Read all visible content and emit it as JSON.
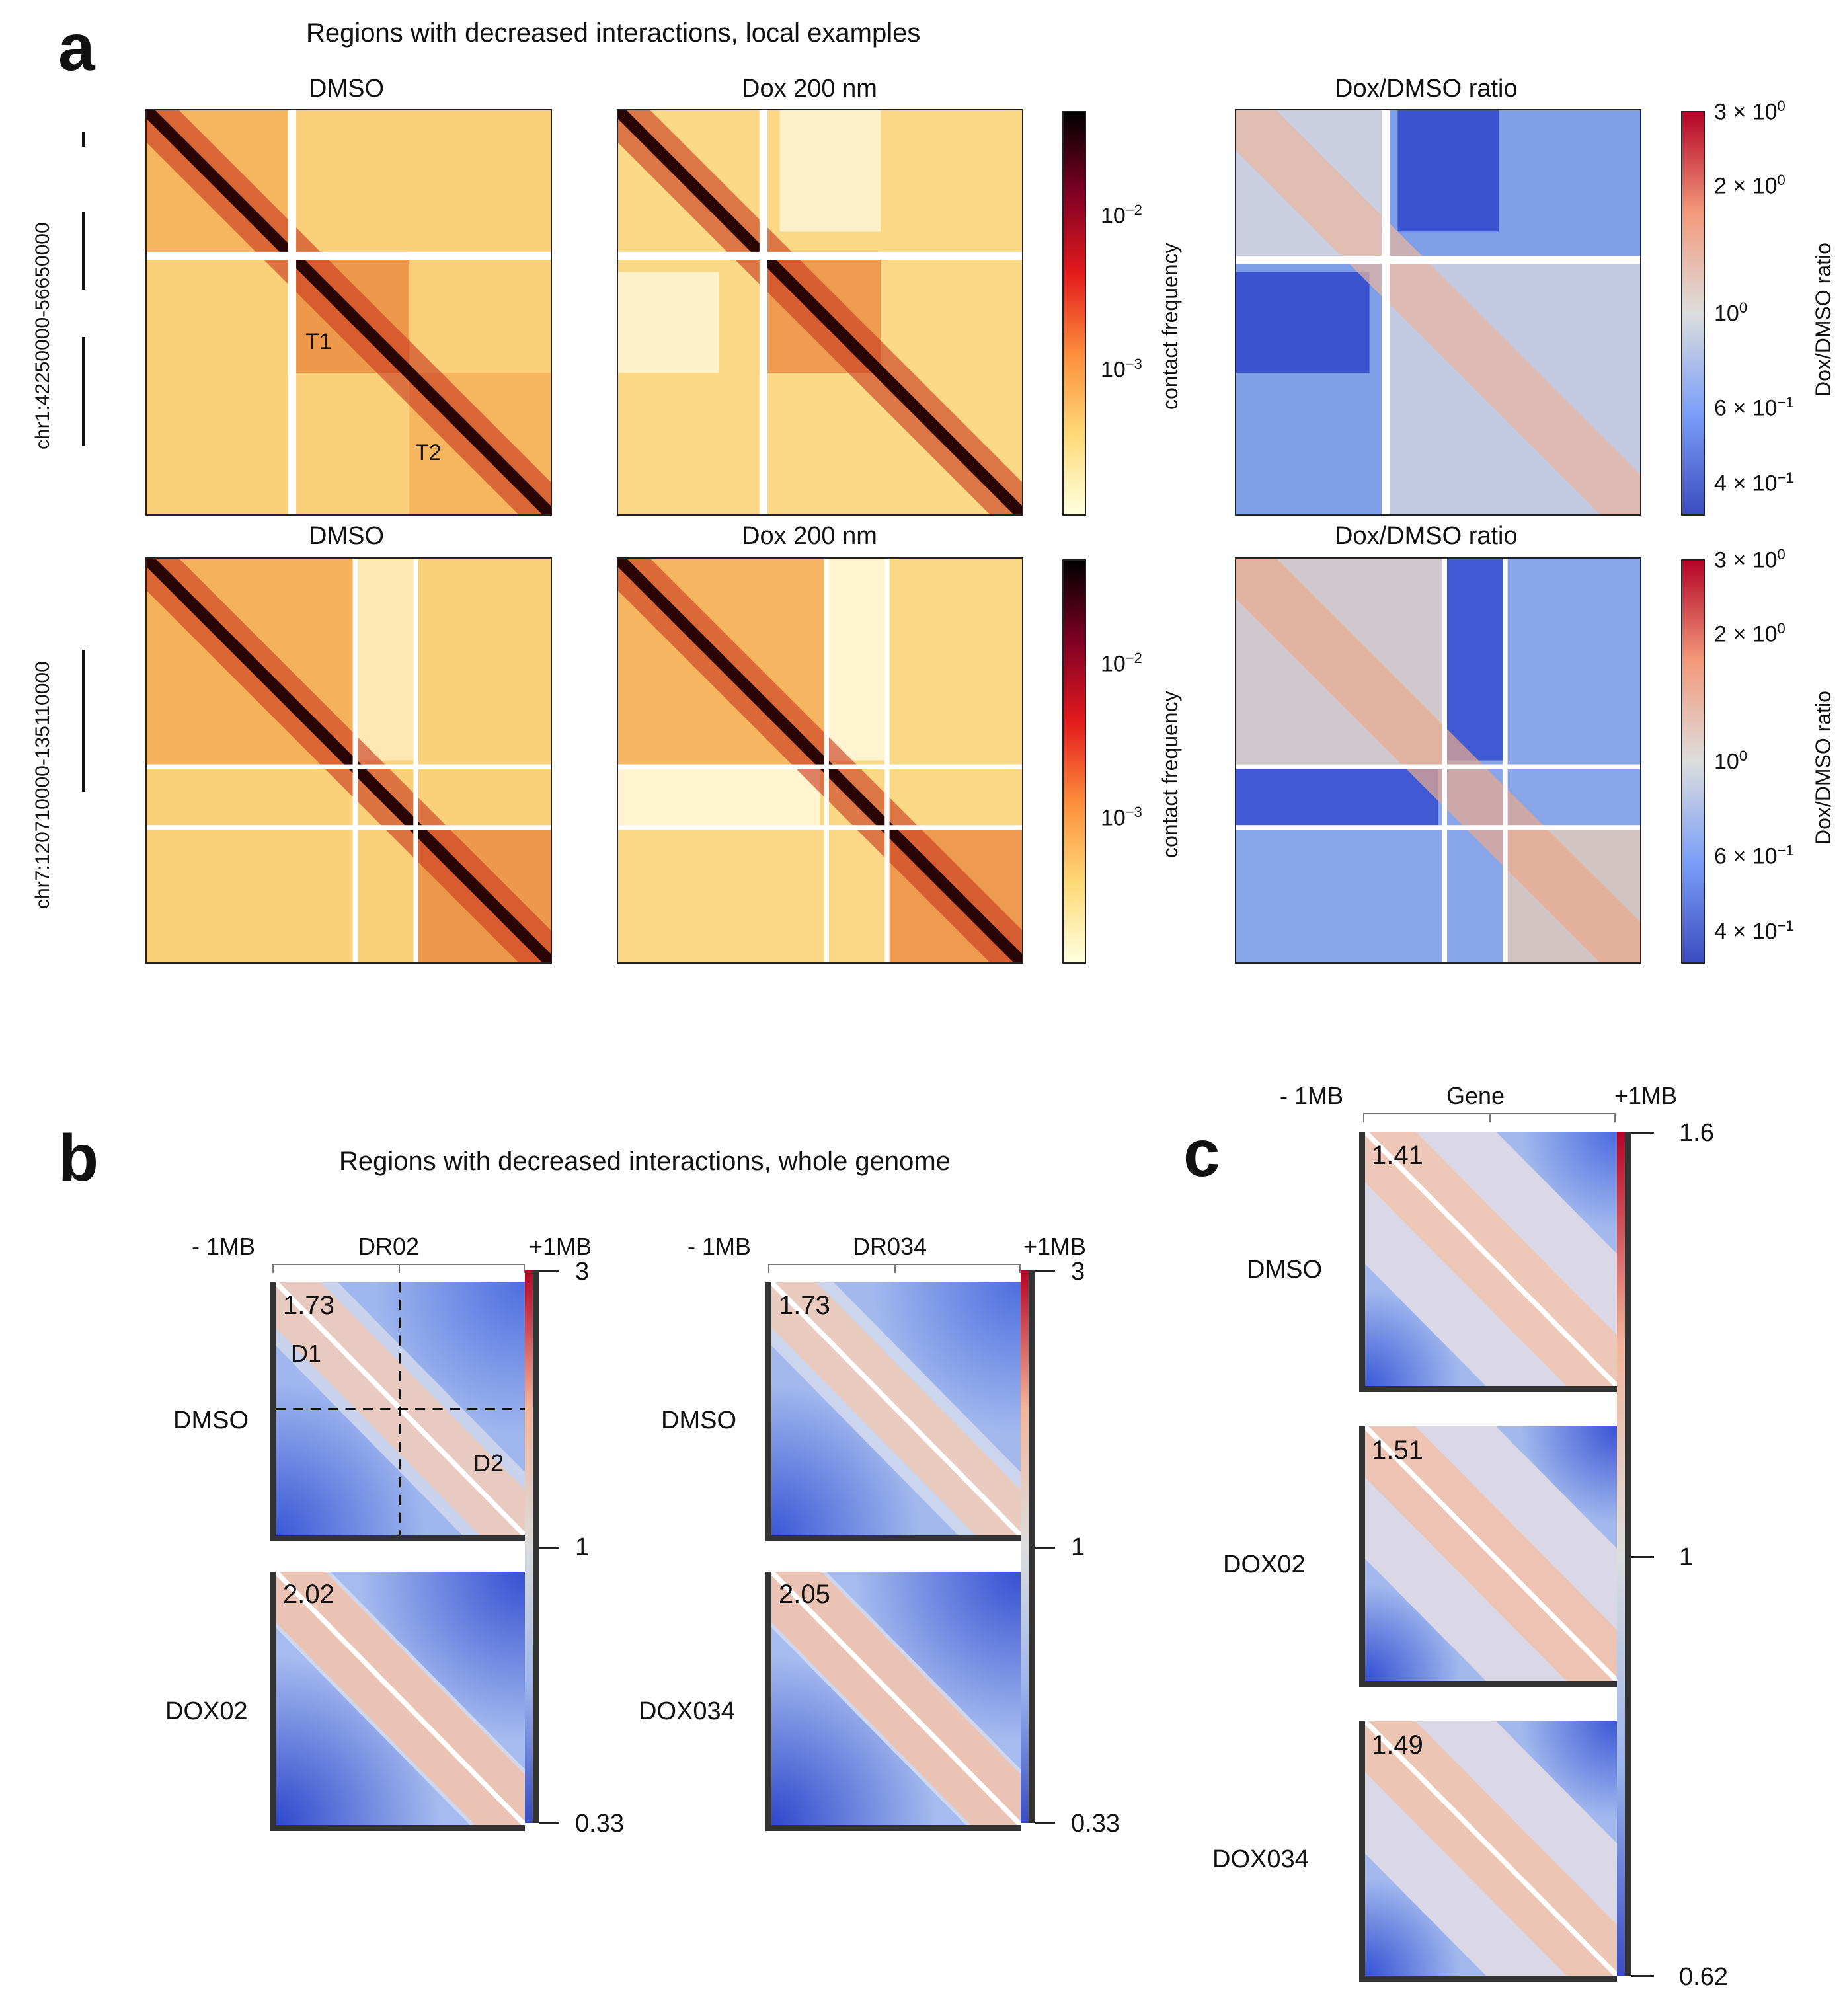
{
  "panel_a": {
    "letter": "a",
    "title": "Regions with decreased interactions, local examples",
    "rows": [
      {
        "region": "chr1:42250000-56650000",
        "titles": [
          "DMSO",
          "Dox 200 nm",
          "Dox/DMSO ratio"
        ],
        "annotations": [
          "T1",
          "T2"
        ]
      },
      {
        "region": "chr7:120710000-135110000",
        "titles": [
          "DMSO",
          "Dox 200 nm",
          "Dox/DMSO ratio"
        ],
        "annotations": []
      }
    ],
    "contact_cbar": {
      "label": "contact frequency",
      "ticks": [
        "10",
        "−2",
        "10",
        "−3"
      ]
    },
    "ratio_cbar": {
      "label": "Dox/DMSO ratio",
      "ticks": [
        {
          "base": "3 × 10",
          "exp": "0"
        },
        {
          "base": "2 × 10",
          "exp": "0"
        },
        {
          "base": "10",
          "exp": "0"
        },
        {
          "base": "6 × 10",
          "exp": "−1"
        },
        {
          "base": "4 × 10",
          "exp": "−1"
        }
      ]
    }
  },
  "panel_b": {
    "letter": "b",
    "title": "Regions with decreased interactions, whole genome",
    "groups": [
      {
        "left": "- 1MB",
        "center": "DR02",
        "right": "+1MB",
        "rows": [
          {
            "label": "DMSO",
            "value": "1.73"
          },
          {
            "label": "DOX02",
            "value": "2.02"
          }
        ],
        "annotations": [
          "D1",
          "D2"
        ]
      },
      {
        "left": "- 1MB",
        "center": "DR034",
        "right": "+1MB",
        "rows": [
          {
            "label": "DMSO",
            "value": "1.73"
          },
          {
            "label": "DOX034",
            "value": "2.05"
          }
        ]
      }
    ],
    "cbar_ticks": [
      "3",
      "1",
      "0.33"
    ]
  },
  "panel_c": {
    "letter": "c",
    "left": "- 1MB",
    "center": "Gene",
    "right": "+1MB",
    "rows": [
      {
        "label": "DMSO",
        "value": "1.41"
      },
      {
        "label": "DOX02",
        "value": "1.51"
      },
      {
        "label": "DOX034",
        "value": "1.49"
      }
    ],
    "cbar_ticks": [
      "1.6",
      "1",
      "0.62"
    ]
  }
}
